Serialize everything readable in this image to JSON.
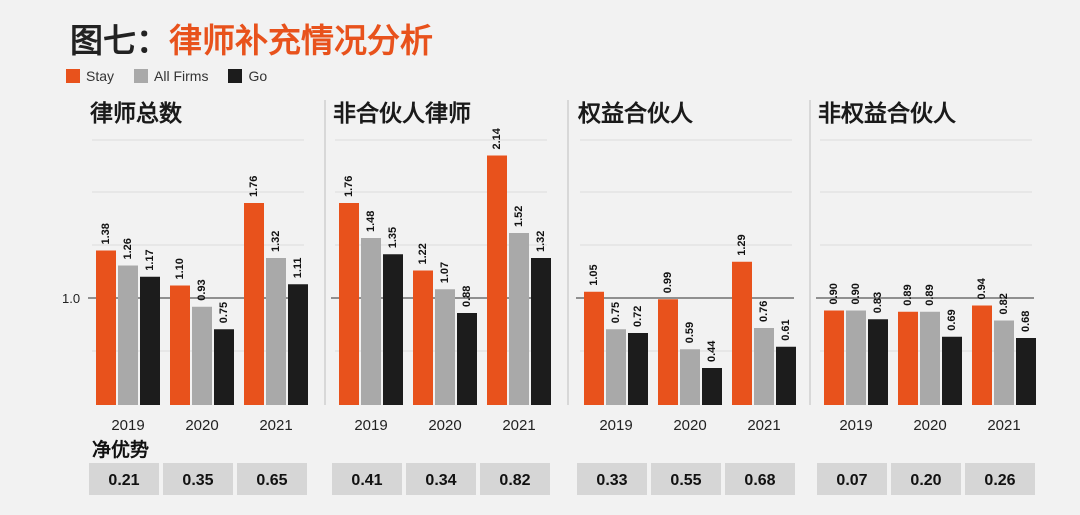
{
  "title_prefix": "图七：",
  "title_main": "律师补充情况分析",
  "colors": {
    "stay": "#e8521c",
    "all_firms": "#a9a9a9",
    "go": "#1c1c1c",
    "net_box": "#d6d6d6"
  },
  "legend": [
    {
      "label": "Stay",
      "color": "#e8521c"
    },
    {
      "label": "All Firms",
      "color": "#a9a9a9"
    },
    {
      "label": "Go",
      "color": "#1c1c1c"
    }
  ],
  "chart_data": {
    "type": "bar",
    "y_ref_label": "1.0",
    "y_ref_value": 1.0,
    "net_advantage_label": "净优势",
    "series_names": [
      "Stay",
      "All Firms",
      "Go"
    ],
    "panels": [
      {
        "title": "律师总数",
        "categories": [
          "2019",
          "2020",
          "2021"
        ],
        "series": [
          {
            "name": "Stay",
            "values": [
              1.38,
              1.1,
              1.76
            ]
          },
          {
            "name": "All Firms",
            "values": [
              1.26,
              0.93,
              1.32
            ]
          },
          {
            "name": "Go",
            "values": [
              1.17,
              0.75,
              1.11
            ]
          }
        ],
        "net_advantage": [
          "0.21",
          "0.35",
          "0.65"
        ]
      },
      {
        "title": "非合伙人律师",
        "categories": [
          "2019",
          "2020",
          "2021"
        ],
        "series": [
          {
            "name": "Stay",
            "values": [
              1.76,
              1.22,
              2.14
            ]
          },
          {
            "name": "All Firms",
            "values": [
              1.48,
              1.07,
              1.52
            ]
          },
          {
            "name": "Go",
            "values": [
              1.35,
              0.88,
              1.32
            ]
          }
        ],
        "net_advantage": [
          "0.41",
          "0.34",
          "0.82"
        ]
      },
      {
        "title": "权益合伙人",
        "categories": [
          "2019",
          "2020",
          "2021"
        ],
        "series": [
          {
            "name": "Stay",
            "values": [
              1.05,
              0.99,
              1.29
            ]
          },
          {
            "name": "All Firms",
            "values": [
              0.75,
              0.59,
              0.76
            ]
          },
          {
            "name": "Go",
            "values": [
              0.72,
              0.44,
              0.61
            ]
          }
        ],
        "net_advantage": [
          "0.33",
          "0.55",
          "0.68"
        ]
      },
      {
        "title": "非权益合伙人",
        "categories": [
          "2019",
          "2020",
          "2021"
        ],
        "series": [
          {
            "name": "Stay",
            "values": [
              0.9,
              0.89,
              0.94
            ]
          },
          {
            "name": "All Firms",
            "values": [
              0.9,
              0.89,
              0.82
            ]
          },
          {
            "name": "Go",
            "values": [
              0.83,
              0.69,
              0.68
            ]
          }
        ],
        "net_advantage": [
          "0.07",
          "0.20",
          "0.26"
        ]
      }
    ]
  }
}
